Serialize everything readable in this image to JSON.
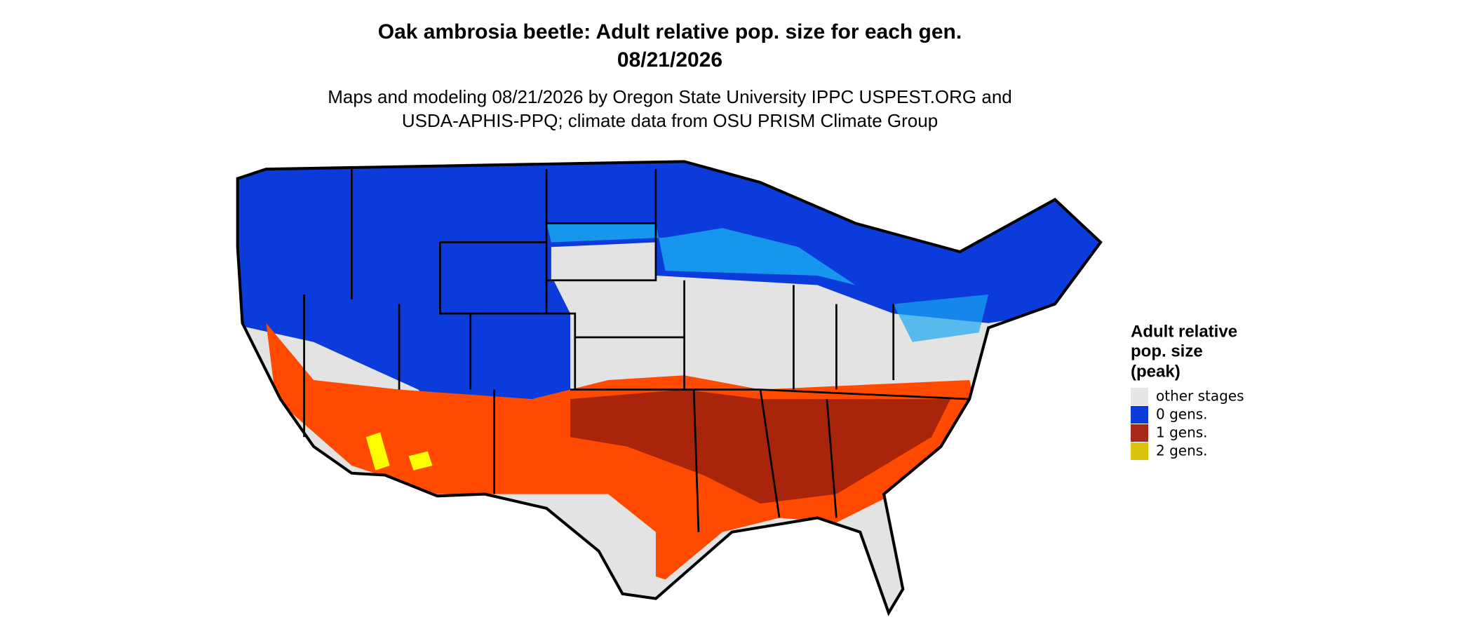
{
  "header": {
    "title": [
      "Oak ambrosia beetle: Adult relative pop. size for each gen.",
      "08/21/2026"
    ],
    "subtitle": [
      "Maps and modeling 08/21/2026 by Oregon State University IPPC USPEST.ORG and",
      "USDA-APHIS-PPQ; climate data from OSU PRISM Climate Group"
    ]
  },
  "legend": {
    "title": [
      "Adult relative",
      "pop. size",
      "(peak)"
    ],
    "items": [
      {
        "label": "other stages",
        "color": "#e6e6e6"
      },
      {
        "label": "0 gens.",
        "color": "#0c3bdc"
      },
      {
        "label": "1 gens.",
        "color": "#a8281a"
      },
      {
        "label": "2 gens.",
        "color": "#dcc30f"
      }
    ]
  }
}
